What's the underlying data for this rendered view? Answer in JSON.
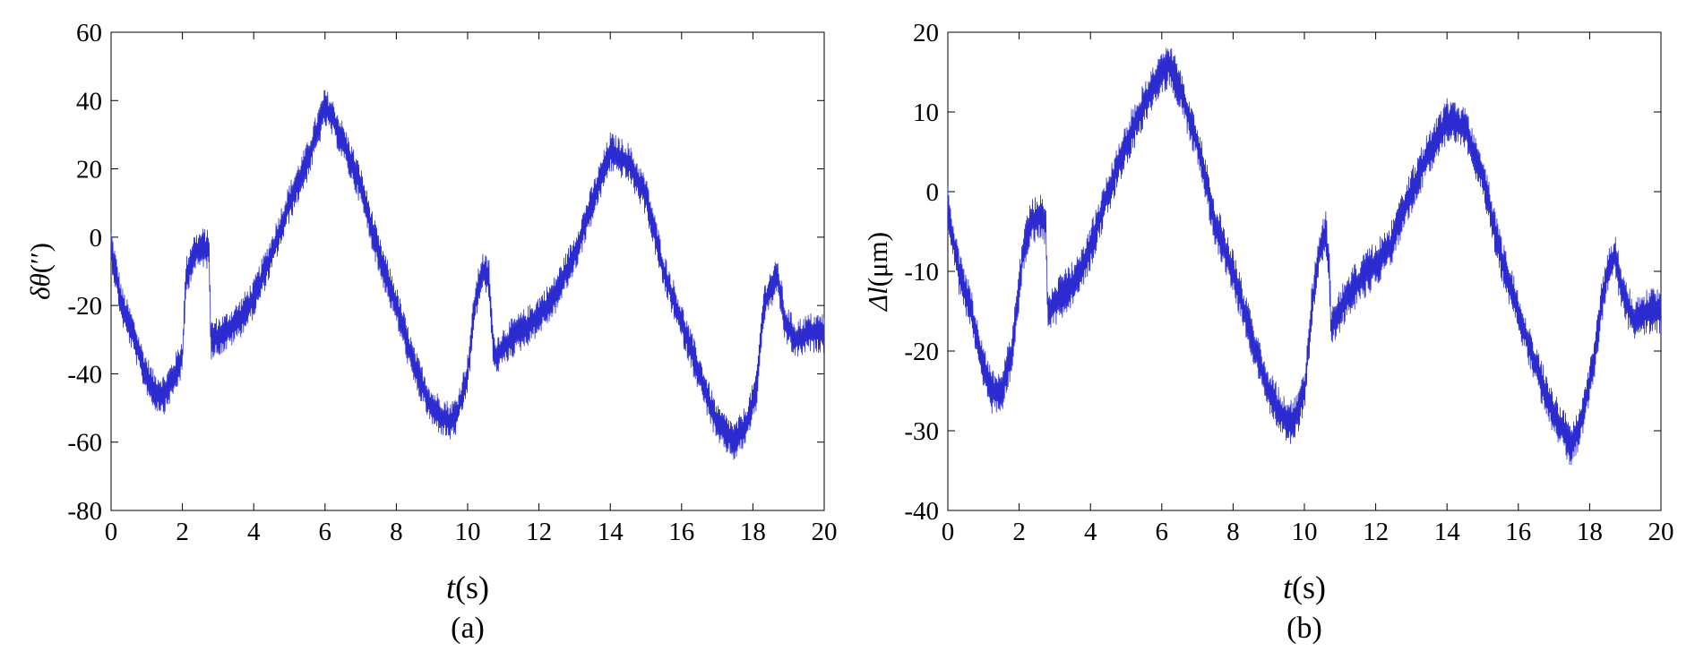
{
  "figure": {
    "panels": [
      {
        "caption": "(a)",
        "ylabel_symbol": "δθ",
        "ylabel_unit": "(′′)",
        "xlabel_symbol": "t",
        "xlabel_unit": "(s)",
        "line_color": "#2b2bd0"
      },
      {
        "caption": "(b)",
        "ylabel_symbol": "Δl",
        "ylabel_unit": "(μm)",
        "xlabel_symbol": "t",
        "xlabel_unit": "(s)",
        "line_color": "#2b2bd0"
      }
    ]
  },
  "chart_data": [
    {
      "type": "line",
      "title": "",
      "xlabel": "t(s)",
      "ylabel": "δθ(′′)",
      "xlim": [
        0,
        20
      ],
      "ylim": [
        -80,
        60
      ],
      "xticks": [
        0,
        2,
        4,
        6,
        8,
        10,
        12,
        14,
        16,
        18,
        20
      ],
      "yticks": [
        -80,
        -60,
        -40,
        -20,
        0,
        20,
        40,
        60
      ],
      "grid": false,
      "noise_band": 4.5,
      "series": [
        {
          "x": [
            0,
            0.3,
            0.6,
            0.9,
            1.2,
            1.5,
            1.8,
            2.0,
            2.1,
            2.3,
            2.6,
            2.75,
            2.8,
            3.2,
            3.6,
            4.0,
            4.5,
            5.0,
            5.5,
            6.0,
            6.2,
            6.5,
            7.0,
            7.5,
            8.0,
            8.5,
            9.0,
            9.5,
            9.7,
            10.0,
            10.2,
            10.4,
            10.6,
            10.7,
            10.75,
            11.2,
            11.8,
            12.4,
            13.0,
            13.5,
            14.0,
            14.5,
            15.0,
            15.5,
            16.0,
            16.5,
            17.0,
            17.5,
            17.8,
            18.1,
            18.3,
            18.5,
            18.7,
            18.9,
            19.2,
            19.6,
            20.0
          ],
          "y": [
            -3,
            -20,
            -28,
            -38,
            -45,
            -46,
            -40,
            -35,
            -12,
            -5,
            -3,
            -4,
            -30,
            -28,
            -24,
            -18,
            -5,
            10,
            22,
            38,
            35,
            28,
            15,
            -5,
            -20,
            -38,
            -50,
            -54,
            -52,
            -40,
            -20,
            -10,
            -12,
            -30,
            -35,
            -30,
            -25,
            -18,
            -5,
            10,
            25,
            22,
            12,
            -10,
            -25,
            -40,
            -55,
            -60,
            -55,
            -45,
            -20,
            -15,
            -12,
            -25,
            -30,
            -28,
            -28
          ]
        }
      ]
    },
    {
      "type": "line",
      "title": "",
      "xlabel": "t(s)",
      "ylabel": "Δl(μm)",
      "xlim": [
        0,
        20
      ],
      "ylim": [
        -40,
        20
      ],
      "xticks": [
        0,
        2,
        4,
        6,
        8,
        10,
        12,
        14,
        16,
        18,
        20
      ],
      "yticks": [
        -40,
        -30,
        -20,
        -10,
        0,
        10,
        20
      ],
      "grid": false,
      "noise_band": 2.2,
      "series": [
        {
          "x": [
            0,
            0.3,
            0.6,
            0.9,
            1.2,
            1.5,
            1.8,
            2.1,
            2.3,
            2.6,
            2.75,
            2.8,
            3.2,
            3.6,
            4.0,
            4.5,
            5.0,
            5.5,
            6.0,
            6.2,
            6.5,
            7.0,
            7.5,
            8.0,
            8.5,
            9.0,
            9.5,
            9.7,
            10.0,
            10.2,
            10.4,
            10.6,
            10.7,
            10.75,
            11.2,
            11.8,
            12.4,
            13.0,
            13.5,
            14.0,
            14.5,
            15.0,
            15.5,
            16.0,
            16.5,
            17.0,
            17.5,
            17.8,
            18.1,
            18.3,
            18.5,
            18.7,
            18.9,
            19.2,
            19.6,
            20.0
          ],
          "y": [
            -2,
            -10,
            -14,
            -20,
            -25,
            -25,
            -20,
            -8,
            -4,
            -3,
            -4,
            -15,
            -13,
            -11,
            -7,
            0,
            6,
            11,
            15,
            16,
            13,
            6,
            -4,
            -10,
            -18,
            -25,
            -29,
            -29,
            -25,
            -15,
            -8,
            -5,
            -10,
            -17,
            -13,
            -10,
            -7,
            0,
            5,
            9,
            8,
            2,
            -8,
            -15,
            -22,
            -28,
            -32,
            -28,
            -22,
            -15,
            -10,
            -8,
            -12,
            -16,
            -15,
            -15
          ]
        }
      ]
    }
  ]
}
